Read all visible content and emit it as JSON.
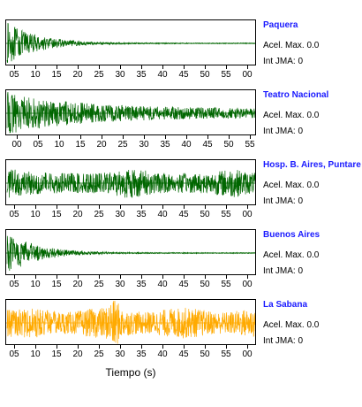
{
  "x_axis_label": "Tiempo (s)",
  "stations": [
    {
      "name": "Paquera",
      "accel_label": "Acel. Max.",
      "accel_value": "0.0",
      "intensity_label": "Int JMA:",
      "intensity_value": "0",
      "trace_color": "#006600",
      "envelope": "decay-fast",
      "ticks": [
        "05",
        "10",
        "15",
        "20",
        "25",
        "30",
        "35",
        "40",
        "45",
        "50",
        "55",
        "00"
      ]
    },
    {
      "name": "Teatro Nacional",
      "accel_label": "Acel. Max.",
      "accel_value": "0.0",
      "intensity_label": "Int JMA:",
      "intensity_value": "0",
      "trace_color": "#006600",
      "envelope": "decay-slow",
      "ticks": [
        "00",
        "05",
        "10",
        "15",
        "20",
        "25",
        "30",
        "35",
        "40",
        "45",
        "50",
        "55"
      ]
    },
    {
      "name": "Hosp. B. Aires, Puntare",
      "accel_label": "Acel. Max.",
      "accel_value": "0.0",
      "intensity_label": "Int JMA:",
      "intensity_value": "0",
      "trace_color": "#006600",
      "envelope": "sustained",
      "ticks": [
        "05",
        "10",
        "15",
        "20",
        "25",
        "30",
        "35",
        "40",
        "45",
        "50",
        "55",
        "00"
      ]
    },
    {
      "name": "Buenos Aires",
      "accel_label": "Acel. Max.",
      "accel_value": "0.0",
      "intensity_label": "Int JMA:",
      "intensity_value": "0",
      "trace_color": "#006600",
      "envelope": "decay-fast",
      "ticks": [
        "05",
        "10",
        "15",
        "20",
        "25",
        "30",
        "35",
        "40",
        "45",
        "50",
        "55",
        "00"
      ]
    },
    {
      "name": "La Sabana",
      "accel_label": "Acel. Max.",
      "accel_value": "0.0",
      "intensity_label": "Int JMA:",
      "intensity_value": "0",
      "trace_color": "#ffaa00",
      "envelope": "noisy-spike",
      "ticks": [
        "05",
        "10",
        "15",
        "20",
        "25",
        "30",
        "35",
        "40",
        "45",
        "50",
        "55",
        "00"
      ]
    }
  ]
}
